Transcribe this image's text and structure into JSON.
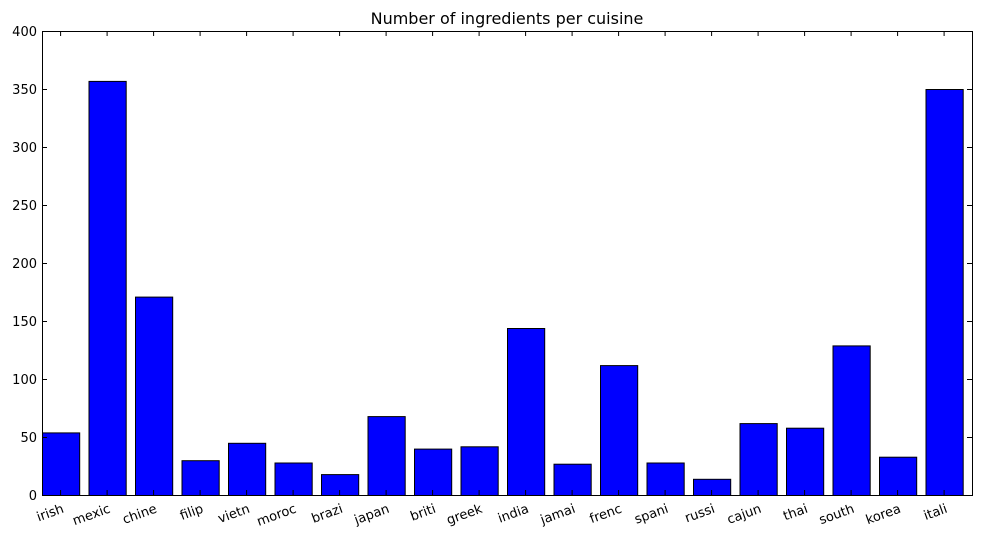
{
  "chart_data": {
    "type": "bar",
    "title": "Number of ingredients per cuisine",
    "xlabel": "",
    "ylabel": "",
    "categories": [
      "irish",
      "mexic",
      "chine",
      "filip",
      "vietn",
      "moroc",
      "brazi",
      "japan",
      "briti",
      "greek",
      "india",
      "jamai",
      "frenc",
      "spani",
      "russi",
      "cajun",
      "thai",
      "south",
      "korea",
      "itali"
    ],
    "values": [
      54,
      357,
      171,
      30,
      45,
      28,
      18,
      68,
      40,
      42,
      144,
      27,
      112,
      28,
      14,
      62,
      58,
      129,
      33,
      350
    ],
    "ylim": [
      0,
      400
    ],
    "yticks": [
      0,
      50,
      100,
      150,
      200,
      250,
      300,
      350,
      400
    ],
    "bar_color": "#0000ff",
    "grid": false
  }
}
